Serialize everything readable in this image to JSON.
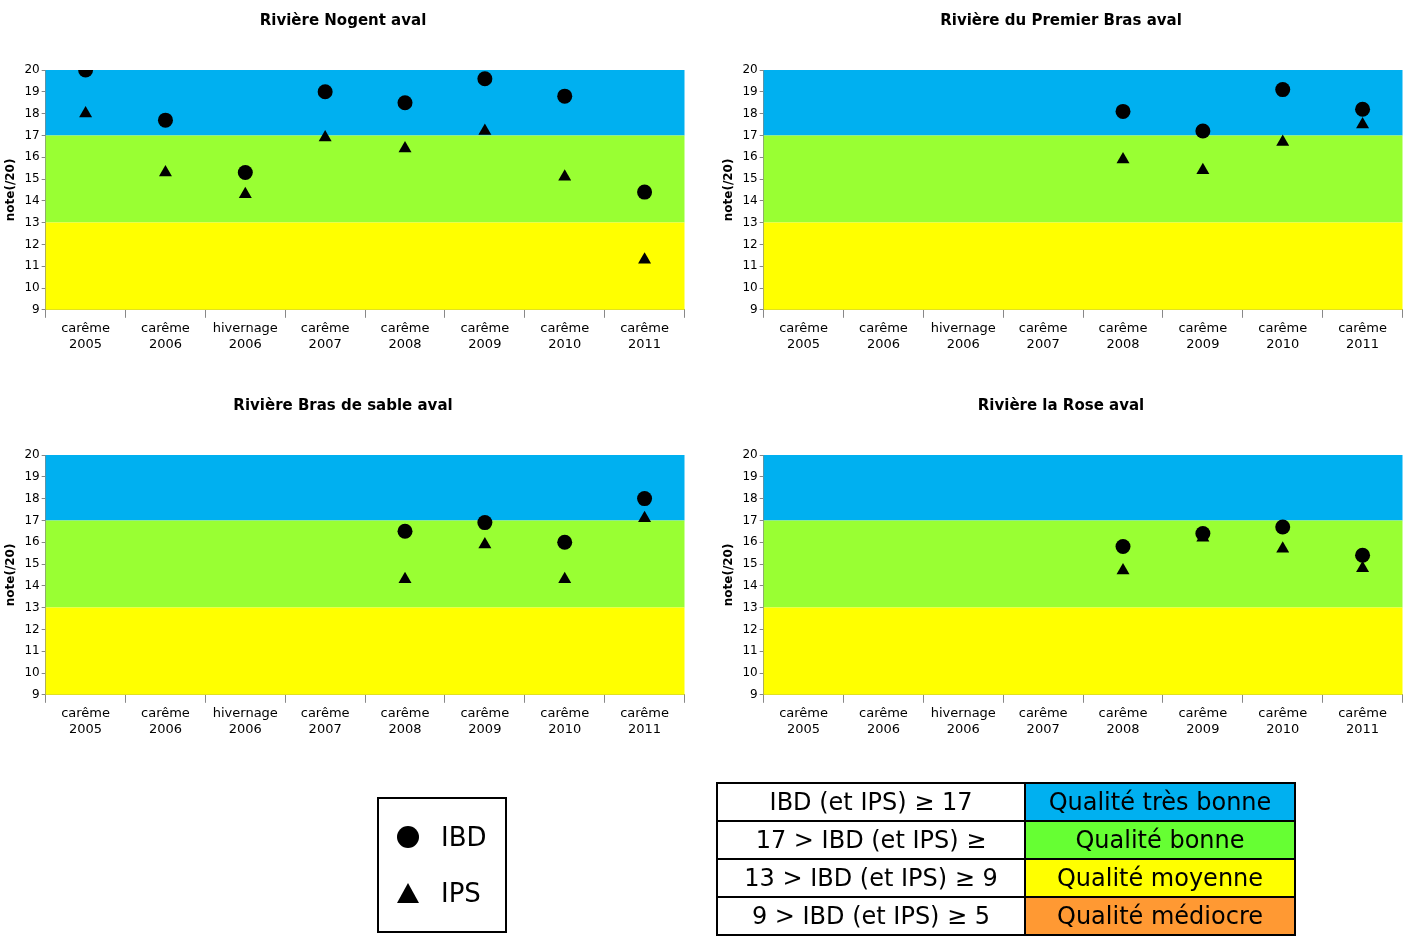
{
  "chart_data": [
    {
      "type": "scatter",
      "title": "Rivière Nogent aval",
      "ylabel": "note(/20)",
      "categories": [
        "carême 2005",
        "carême 2006",
        "hivernage 2006",
        "carême 2007",
        "carême 2008",
        "carême 2009",
        "carême 2010",
        "carême 2011"
      ],
      "ylim": [
        9,
        20
      ],
      "yticks": [
        9,
        10,
        11,
        12,
        13,
        14,
        15,
        16,
        17,
        18,
        19,
        20
      ],
      "bands": [
        {
          "axis": "y",
          "from": 17,
          "to": 20,
          "color": "#00b0f0"
        },
        {
          "axis": "y",
          "from": 13,
          "to": 17,
          "color": "#99ff33"
        },
        {
          "axis": "y",
          "from": 9,
          "to": 13,
          "color": "#ffff00"
        }
      ],
      "series": [
        {
          "color": "#000000",
          "marker": "circle",
          "values": [
            20.0,
            17.7,
            15.3,
            19.0,
            18.5,
            19.6,
            18.8,
            14.4
          ]
        },
        {
          "color": "#000000",
          "marker": "triangle",
          "values": [
            18.0,
            15.3,
            14.3,
            16.9,
            16.4,
            17.2,
            15.1,
            11.3
          ]
        }
      ]
    },
    {
      "type": "scatter",
      "title": "Rivière du Premier Bras aval",
      "ylabel": "note(/20)",
      "categories": [
        "carême 2005",
        "carême 2006",
        "hivernage 2006",
        "carême 2007",
        "carême 2008",
        "carême 2009",
        "carême 2010",
        "carême 2011"
      ],
      "ylim": [
        9,
        20
      ],
      "yticks": [
        9,
        10,
        11,
        12,
        13,
        14,
        15,
        16,
        17,
        18,
        19,
        20
      ],
      "bands": [
        {
          "axis": "y",
          "from": 17,
          "to": 20,
          "color": "#00b0f0"
        },
        {
          "axis": "y",
          "from": 13,
          "to": 17,
          "color": "#99ff33"
        },
        {
          "axis": "y",
          "from": 9,
          "to": 13,
          "color": "#ffff00"
        }
      ],
      "series": [
        {
          "color": "#000000",
          "marker": "circle",
          "values": [
            null,
            null,
            null,
            null,
            18.1,
            17.2,
            19.1,
            18.2
          ]
        },
        {
          "color": "#000000",
          "marker": "triangle",
          "values": [
            null,
            null,
            null,
            null,
            15.9,
            15.4,
            16.7,
            17.5
          ]
        }
      ]
    },
    {
      "type": "scatter",
      "title": "Rivière Bras de sable aval",
      "ylabel": "note(/20)",
      "legend": "bottom",
      "categories": [
        "carême 2005",
        "carême 2006",
        "hivernage 2006",
        "carême 2007",
        "carême 2008",
        "carême 2009",
        "carême 2010",
        "carême 2011"
      ],
      "ylim": [
        9,
        20
      ],
      "yticks": [
        9,
        10,
        11,
        12,
        13,
        14,
        15,
        16,
        17,
        18,
        19,
        20
      ],
      "bands": [
        {
          "axis": "y",
          "from": 17,
          "to": 20,
          "color": "#00b0f0"
        },
        {
          "axis": "y",
          "from": 13,
          "to": 17,
          "color": "#99ff33"
        },
        {
          "axis": "y",
          "from": 9,
          "to": 13,
          "color": "#ffff00"
        }
      ],
      "series": [
        {
          "name": "IBD",
          "color": "#000000",
          "marker": "circle",
          "values": [
            null,
            null,
            null,
            null,
            16.5,
            16.9,
            16.0,
            18.0
          ]
        },
        {
          "name": "IPS",
          "color": "#000000",
          "marker": "triangle",
          "values": [
            null,
            null,
            null,
            null,
            14.3,
            15.9,
            14.3,
            17.1
          ]
        }
      ]
    },
    {
      "type": "scatter",
      "title": "Rivière la Rose aval",
      "ylabel": "note(/20)",
      "categories": [
        "carême 2005",
        "carême 2006",
        "hivernage 2006",
        "carême 2007",
        "carême 2008",
        "carême 2009",
        "carême 2010",
        "carême 2011"
      ],
      "ylim": [
        9,
        20
      ],
      "yticks": [
        9,
        10,
        11,
        12,
        13,
        14,
        15,
        16,
        17,
        18,
        19,
        20
      ],
      "bands": [
        {
          "axis": "y",
          "from": 17,
          "to": 20,
          "color": "#00b0f0"
        },
        {
          "axis": "y",
          "from": 13,
          "to": 17,
          "color": "#99ff33"
        },
        {
          "axis": "y",
          "from": 9,
          "to": 13,
          "color": "#ffff00"
        }
      ],
      "series": [
        {
          "color": "#000000",
          "marker": "circle",
          "values": [
            null,
            null,
            null,
            null,
            15.8,
            16.4,
            16.7,
            15.4
          ]
        },
        {
          "color": "#000000",
          "marker": "triangle",
          "values": [
            null,
            null,
            null,
            null,
            14.7,
            16.2,
            15.7,
            14.8
          ]
        }
      ]
    },
    {
      "type": "other",
      "annotations": [
        "IBD (et IPS) ≥ 17",
        "Qualité très bonne",
        "17 > IBD (et IPS) ≥",
        "Qualité bonne",
        "13 > IBD (et IPS) ≥ 9",
        "Qualité moyenne",
        "9 > IBD (et IPS) ≥ 5",
        "Qualité médiocre"
      ]
    }
  ]
}
